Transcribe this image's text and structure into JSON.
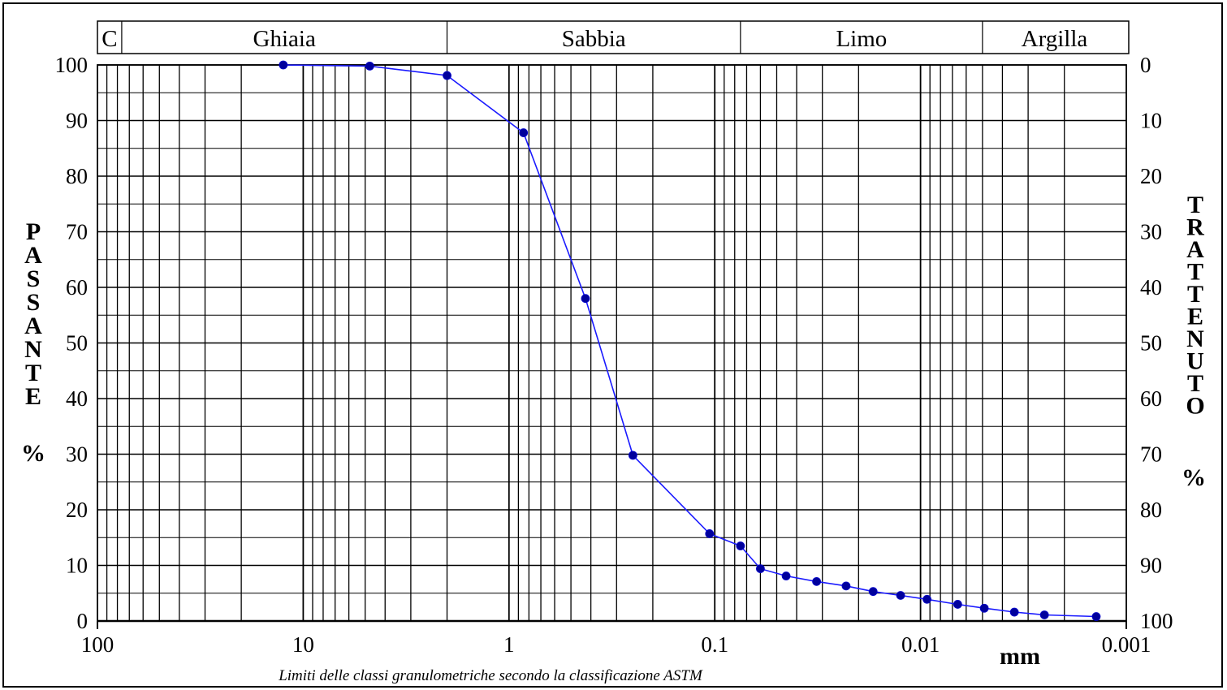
{
  "chart_data": {
    "type": "line",
    "x_scale": "log",
    "x_reversed": true,
    "xlim": [
      100,
      0.001
    ],
    "x_tick_labels": [
      "100",
      "10",
      "1",
      "0.1",
      "0.01",
      "0.001"
    ],
    "x_tick_values": [
      100,
      10,
      1,
      0.1,
      0.01,
      0.001
    ],
    "xunit": "mm",
    "ylim": [
      0,
      100
    ],
    "y_left_label": "PASSANTE",
    "y_left_unit": "%",
    "y_left_ticks": [
      "0",
      "10",
      "20",
      "30",
      "40",
      "50",
      "60",
      "70",
      "80",
      "90",
      "100"
    ],
    "y_right_label": "TRATTENUTO",
    "y_right_unit": "%",
    "y_right_ticks": [
      "100",
      "90",
      "80",
      "70",
      "60",
      "50",
      "40",
      "30",
      "20",
      "10",
      "0"
    ],
    "grid": true,
    "classification_bands": [
      {
        "label": "C",
        "from": 100,
        "to": 76.2
      },
      {
        "label": "Ghiaia",
        "from": 76.2,
        "to": 2
      },
      {
        "label": "Sabbia",
        "from": 2,
        "to": 0.075
      },
      {
        "label": "Limo",
        "from": 0.075,
        "to": 0.005
      },
      {
        "label": "Argilla",
        "from": 0.005,
        "to": 0.001
      }
    ],
    "caption": "Limiti delle classi granulometriche secondo la classificazione ASTM",
    "series": [
      {
        "color": "#1a1aff",
        "points": [
          [
            12.5,
            100
          ],
          [
            4.75,
            99.8
          ],
          [
            2.0,
            98.1
          ],
          [
            0.85,
            87.8
          ],
          [
            0.425,
            58.0
          ],
          [
            0.25,
            29.8
          ],
          [
            0.106,
            15.7
          ],
          [
            0.075,
            13.5
          ],
          [
            0.06,
            9.4
          ],
          [
            0.045,
            8.1
          ],
          [
            0.032,
            7.1
          ],
          [
            0.023,
            6.3
          ],
          [
            0.017,
            5.3
          ],
          [
            0.0125,
            4.6
          ],
          [
            0.0093,
            3.9
          ],
          [
            0.0066,
            3.0
          ],
          [
            0.0049,
            2.3
          ],
          [
            0.0035,
            1.6
          ],
          [
            0.0025,
            1.1
          ],
          [
            0.0014,
            0.8
          ]
        ]
      }
    ]
  }
}
